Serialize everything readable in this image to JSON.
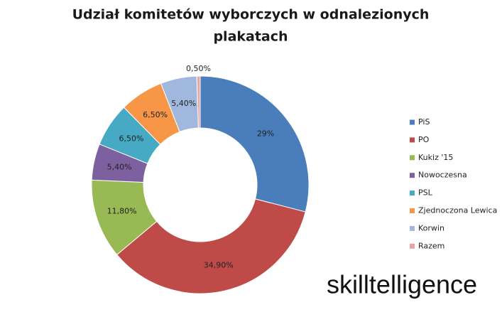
{
  "chart_data": {
    "type": "donut",
    "title": [
      "Udział komitetów wyborczych w odnalezionych",
      "plakatach"
    ],
    "categories": [
      "PiS",
      "PO",
      "Kukiz '15",
      "Nowoczesna",
      "PSL",
      "Zjednoczona Lewica",
      "Korwin",
      "Razem"
    ],
    "values": [
      29,
      34.9,
      11.8,
      5.4,
      6.5,
      6.5,
      5.4,
      0.5
    ],
    "value_labels": [
      "29%",
      "34,90%",
      "11,80%",
      "5,40%",
      "6,50%",
      "6,50%",
      "5,40%",
      "0,50%"
    ],
    "colors": [
      "#4a7ebb",
      "#be4b48",
      "#98b954",
      "#7d60a0",
      "#46aac5",
      "#f79646",
      "#a0b8de",
      "#e6a5a3"
    ],
    "legend": "right"
  },
  "logo": "skilltelligence"
}
